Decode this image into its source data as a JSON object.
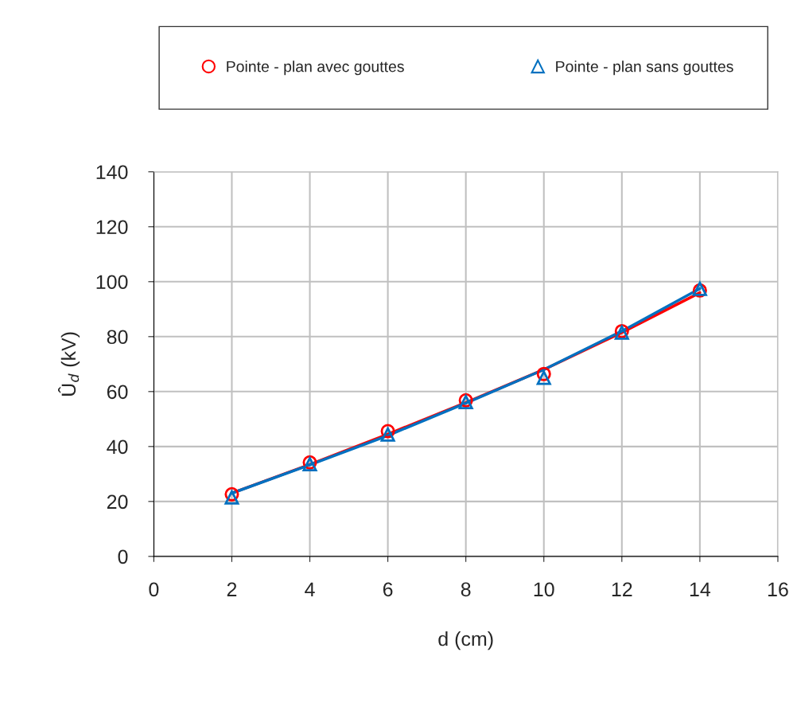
{
  "chart_data": {
    "type": "scatter",
    "xlabel": "d (cm)",
    "ylabel": "Û$_{d}$ (kV)",
    "x": [
      2,
      4,
      6,
      8,
      10,
      12,
      14
    ],
    "series": [
      {
        "name": "Pointe - plan avec gouttes",
        "color": "#ff0000",
        "marker": "circle",
        "values": [
          22.6,
          34.2,
          45.6,
          56.8,
          66.4,
          82,
          96.8
        ]
      },
      {
        "name": "Pointe - plan sans gouttes",
        "color": "#0070c0",
        "marker": "triangle",
        "values": [
          21.5,
          33.6,
          44.4,
          56.2,
          65,
          81.5,
          97.4
        ]
      },
      {
        "type": "line",
        "color": "#ff0000",
        "marker": "none",
        "x": [
          2,
          4,
          6,
          8,
          10,
          12,
          14
        ],
        "values": [
          23,
          33.5,
          44.5,
          56,
          68,
          81.5,
          96
        ]
      },
      {
        "type": "line",
        "color": "#0070c0",
        "marker": "none",
        "x": [
          2,
          4,
          6,
          8,
          10,
          12,
          14
        ],
        "values": [
          23,
          33.3,
          44,
          55.8,
          68,
          82,
          97.5
        ]
      }
    ],
    "xlim": [
      0,
      16
    ],
    "xticks": [
      0,
      2,
      4,
      6,
      8,
      10,
      12,
      14,
      16
    ],
    "ylim": [
      0,
      140
    ],
    "yticks": [
      0,
      20,
      40,
      60,
      80,
      100,
      120,
      140
    ],
    "grid": true,
    "legend": "top"
  }
}
